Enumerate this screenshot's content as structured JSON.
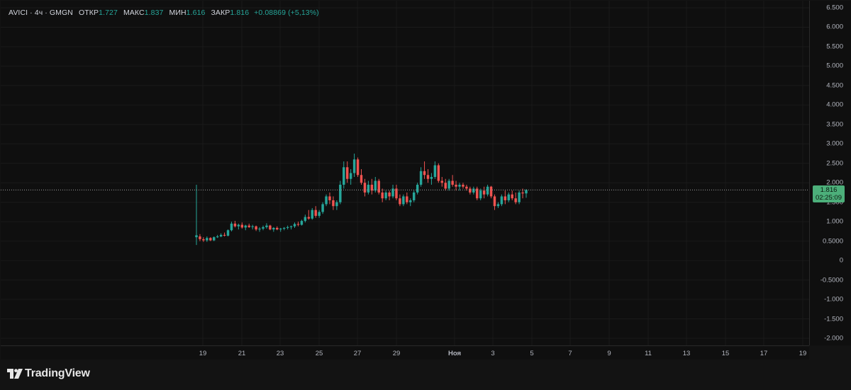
{
  "legend": {
    "symbol": "AVICI · 4ч · GMGN",
    "open_label": "ОТКР",
    "open_value": "1.727",
    "high_label": "МАКС",
    "high_value": "1.837",
    "low_label": "МИН",
    "low_value": "1.616",
    "close_label": "ЗАКР",
    "close_value": "1.816",
    "change": "+0.08869 (+5,13%)"
  },
  "price_axis": {
    "ticks": [
      "6.500",
      "6.000",
      "5.500",
      "5.000",
      "4.500",
      "4.000",
      "3.500",
      "3.000",
      "2.500",
      "2.000",
      "1.500",
      "1.000",
      "0.5000",
      "0",
      "-0.5000",
      "-1.000",
      "-1.500",
      "-2.000"
    ]
  },
  "time_axis": {
    "ticks": [
      "19",
      "21",
      "23",
      "25",
      "27",
      "29",
      "Ноя",
      "3",
      "5",
      "7",
      "9",
      "11",
      "13",
      "15",
      "17",
      "19"
    ]
  },
  "last_price": {
    "price": "1.816",
    "countdown": "02:25:09"
  },
  "branding": {
    "name": "TradingView"
  },
  "colors": {
    "up": "#26a69a",
    "down": "#ef5350",
    "background": "#0f0f0f",
    "price_line": "#9e9e9e"
  },
  "chart_data": {
    "type": "candlestick",
    "interval": "4ч",
    "ylim": [
      -2.0,
      6.5
    ],
    "x_ticks": [
      "19",
      "21",
      "23",
      "25",
      "27",
      "29",
      "Ноя",
      "3",
      "5",
      "7",
      "9",
      "11",
      "13",
      "15",
      "17",
      "19"
    ],
    "candles_ohlc": [
      [
        0.6,
        1.95,
        0.4,
        0.65
      ],
      [
        0.62,
        0.68,
        0.5,
        0.55
      ],
      [
        0.55,
        0.6,
        0.48,
        0.52
      ],
      [
        0.52,
        0.62,
        0.48,
        0.58
      ],
      [
        0.58,
        0.6,
        0.5,
        0.52
      ],
      [
        0.52,
        0.62,
        0.5,
        0.6
      ],
      [
        0.6,
        0.66,
        0.58,
        0.62
      ],
      [
        0.62,
        0.7,
        0.6,
        0.66
      ],
      [
        0.66,
        0.72,
        0.62,
        0.64
      ],
      [
        0.64,
        0.8,
        0.62,
        0.78
      ],
      [
        0.78,
        1.0,
        0.75,
        0.95
      ],
      [
        0.95,
        1.02,
        0.85,
        0.88
      ],
      [
        0.88,
        0.95,
        0.8,
        0.92
      ],
      [
        0.92,
        0.98,
        0.82,
        0.85
      ],
      [
        0.85,
        0.92,
        0.78,
        0.9
      ],
      [
        0.9,
        0.95,
        0.84,
        0.86
      ],
      [
        0.86,
        0.92,
        0.8,
        0.88
      ],
      [
        0.88,
        0.9,
        0.76,
        0.8
      ],
      [
        0.8,
        0.86,
        0.74,
        0.82
      ],
      [
        0.82,
        0.9,
        0.78,
        0.86
      ],
      [
        0.86,
        0.96,
        0.82,
        0.9
      ],
      [
        0.9,
        0.92,
        0.78,
        0.8
      ],
      [
        0.8,
        0.86,
        0.74,
        0.84
      ],
      [
        0.84,
        0.88,
        0.78,
        0.8
      ],
      [
        0.8,
        0.84,
        0.74,
        0.82
      ],
      [
        0.82,
        0.86,
        0.78,
        0.84
      ],
      [
        0.84,
        0.9,
        0.8,
        0.86
      ],
      [
        0.86,
        0.9,
        0.8,
        0.88
      ],
      [
        0.88,
        0.98,
        0.84,
        0.94
      ],
      [
        0.94,
        1.0,
        0.88,
        0.92
      ],
      [
        0.92,
        1.05,
        0.9,
        1.02
      ],
      [
        1.02,
        1.18,
        0.98,
        1.12
      ],
      [
        1.12,
        1.3,
        1.05,
        1.08
      ],
      [
        1.08,
        1.35,
        1.05,
        1.3
      ],
      [
        1.3,
        1.4,
        1.1,
        1.15
      ],
      [
        1.15,
        1.3,
        1.1,
        1.25
      ],
      [
        1.25,
        1.5,
        1.2,
        1.45
      ],
      [
        1.45,
        1.7,
        1.4,
        1.65
      ],
      [
        1.65,
        1.75,
        1.45,
        1.55
      ],
      [
        1.55,
        1.65,
        1.3,
        1.4
      ],
      [
        1.4,
        1.55,
        1.3,
        1.5
      ],
      [
        1.5,
        2.05,
        1.45,
        1.95
      ],
      [
        1.95,
        2.55,
        1.85,
        2.4
      ],
      [
        2.4,
        2.55,
        2.0,
        2.1
      ],
      [
        2.1,
        2.35,
        1.95,
        2.25
      ],
      [
        2.25,
        2.75,
        2.15,
        2.6
      ],
      [
        2.6,
        2.65,
        2.15,
        2.2
      ],
      [
        2.2,
        2.35,
        1.95,
        2.0
      ],
      [
        2.0,
        2.1,
        1.65,
        1.75
      ],
      [
        1.75,
        2.05,
        1.7,
        1.95
      ],
      [
        1.95,
        2.1,
        1.7,
        1.8
      ],
      [
        1.8,
        2.15,
        1.75,
        2.05
      ],
      [
        2.05,
        2.1,
        1.7,
        1.75
      ],
      [
        1.75,
        1.85,
        1.5,
        1.6
      ],
      [
        1.6,
        1.8,
        1.55,
        1.75
      ],
      [
        1.75,
        1.8,
        1.55,
        1.65
      ],
      [
        1.65,
        1.95,
        1.6,
        1.85
      ],
      [
        1.85,
        1.95,
        1.55,
        1.6
      ],
      [
        1.6,
        1.7,
        1.4,
        1.45
      ],
      [
        1.45,
        1.7,
        1.4,
        1.65
      ],
      [
        1.65,
        1.75,
        1.45,
        1.5
      ],
      [
        1.5,
        1.6,
        1.4,
        1.55
      ],
      [
        1.55,
        1.8,
        1.5,
        1.75
      ],
      [
        1.75,
        2.0,
        1.7,
        1.95
      ],
      [
        1.95,
        2.4,
        1.9,
        2.3
      ],
      [
        2.3,
        2.55,
        2.1,
        2.2
      ],
      [
        2.2,
        2.35,
        2.0,
        2.1
      ],
      [
        2.1,
        2.25,
        1.95,
        2.15
      ],
      [
        2.15,
        2.55,
        2.1,
        2.45
      ],
      [
        2.45,
        2.5,
        2.0,
        2.05
      ],
      [
        2.05,
        2.15,
        1.9,
        2.0
      ],
      [
        2.0,
        2.1,
        1.8,
        1.85
      ],
      [
        1.85,
        2.1,
        1.8,
        2.05
      ],
      [
        2.05,
        2.2,
        1.9,
        1.95
      ],
      [
        1.95,
        2.05,
        1.8,
        1.9
      ],
      [
        1.9,
        2.0,
        1.8,
        1.95
      ],
      [
        1.95,
        2.0,
        1.85,
        1.9
      ],
      [
        1.9,
        1.95,
        1.8,
        1.85
      ],
      [
        1.85,
        1.9,
        1.7,
        1.75
      ],
      [
        1.75,
        1.9,
        1.7,
        1.85
      ],
      [
        1.85,
        1.9,
        1.55,
        1.6
      ],
      [
        1.6,
        1.85,
        1.55,
        1.8
      ],
      [
        1.8,
        1.9,
        1.6,
        1.7
      ],
      [
        1.7,
        1.95,
        1.65,
        1.9
      ],
      [
        1.9,
        1.92,
        1.6,
        1.65
      ],
      [
        1.65,
        1.7,
        1.3,
        1.4
      ],
      [
        1.4,
        1.5,
        1.35,
        1.45
      ],
      [
        1.45,
        1.7,
        1.4,
        1.65
      ],
      [
        1.65,
        1.8,
        1.45,
        1.55
      ],
      [
        1.55,
        1.75,
        1.5,
        1.7
      ],
      [
        1.7,
        1.8,
        1.55,
        1.6
      ],
      [
        1.6,
        1.75,
        1.45,
        1.5
      ],
      [
        1.5,
        1.8,
        1.45,
        1.75
      ],
      [
        1.75,
        1.85,
        1.6,
        1.727
      ],
      [
        1.727,
        1.837,
        1.616,
        1.816
      ]
    ],
    "last_price": 1.816
  }
}
